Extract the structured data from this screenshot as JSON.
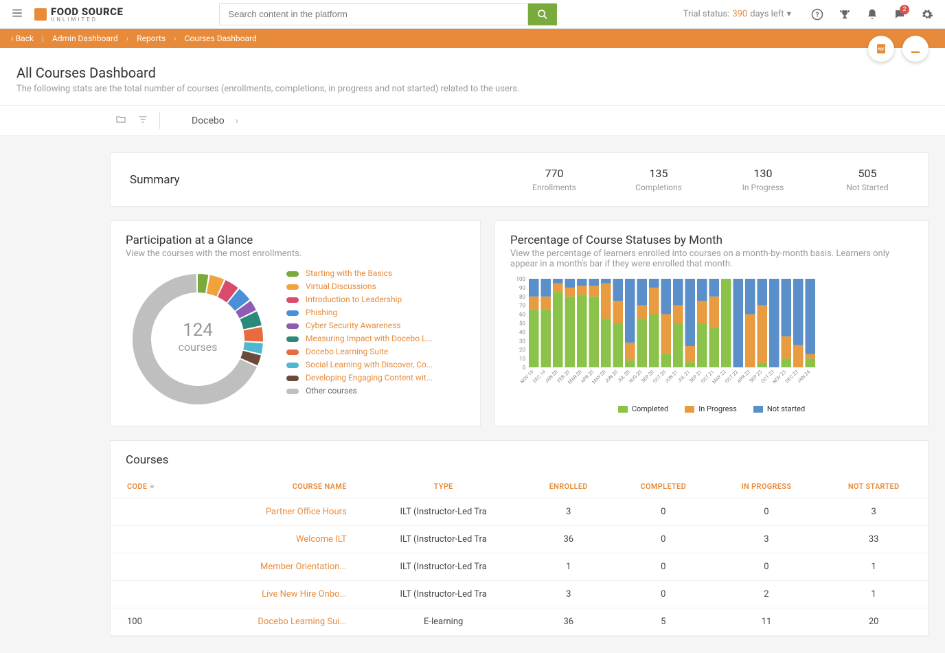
{
  "topbar": {
    "logo_main": "FOOD SOURCE",
    "logo_sub": "UNLIMITED",
    "search_placeholder": "Search content in the platform",
    "trial_prefix": "Trial status:",
    "trial_days": "390",
    "trial_suffix": "days left",
    "notif_badge": "2"
  },
  "breadcrumb": {
    "back": "Back",
    "items": [
      "Admin Dashboard",
      "Reports",
      "Courses Dashboard"
    ]
  },
  "page": {
    "title": "All Courses Dashboard",
    "desc": "The following stats are the total number of courses (enrollments, completions, in progress and not started) related to the users."
  },
  "filter": {
    "root": "Docebo"
  },
  "summary": {
    "title": "Summary",
    "stats": [
      {
        "num": "770",
        "lbl": "Enrollments"
      },
      {
        "num": "135",
        "lbl": "Completions"
      },
      {
        "num": "130",
        "lbl": "In Progress"
      },
      {
        "num": "505",
        "lbl": "Not Started"
      }
    ]
  },
  "donut": {
    "title": "Participation at a Glance",
    "desc": "View the courses with the most enrollments.",
    "center_num": "124",
    "center_lbl": "courses",
    "segments": [
      {
        "label": "Starting with the Basics",
        "color": "#7aaa3c",
        "pct": 3
      },
      {
        "label": "Virtual Discussions",
        "color": "#f0a23e",
        "pct": 4
      },
      {
        "label": "Introduction to Leadership",
        "color": "#d94b6a",
        "pct": 4
      },
      {
        "label": "Phishing",
        "color": "#4a90d9",
        "pct": 4
      },
      {
        "label": "Cyber Security Awareness",
        "color": "#8e5bb5",
        "pct": 3
      },
      {
        "label": "Measuring Impact with Docebo L...",
        "color": "#2b8a7a",
        "pct": 4
      },
      {
        "label": "Docebo Learning Suite",
        "color": "#e86a3f",
        "pct": 4
      },
      {
        "label": "Social Learning with Discover, Co...",
        "color": "#4fb8d1",
        "pct": 3
      },
      {
        "label": "Developing Engaging Content wit...",
        "color": "#6b4a3a",
        "pct": 3
      },
      {
        "label": "Other courses",
        "color": "#bfbfbf",
        "pct": 68,
        "gray": true
      }
    ]
  },
  "barchart": {
    "title": "Percentage of Course Statuses by Month",
    "desc": "View the percentage of learners enrolled into courses on a month-by-month basis. Learners only appear in a month's bar if they were enrolled that month.",
    "y_ticks": [
      0,
      10,
      20,
      30,
      40,
      50,
      60,
      70,
      80,
      90,
      100
    ],
    "colors": {
      "completed": "#8bc34a",
      "in_progress": "#e89b3f",
      "not_started": "#5a8fca"
    },
    "legend": [
      {
        "key": "completed",
        "label": "Completed"
      },
      {
        "key": "in_progress",
        "label": "In Progress"
      },
      {
        "key": "not_started",
        "label": "Not started"
      }
    ],
    "months": [
      {
        "l": "NOV 19",
        "c": 65,
        "p": 15,
        "n": 20
      },
      {
        "l": "DEC 19",
        "c": 65,
        "p": 15,
        "n": 20
      },
      {
        "l": "JAN 20",
        "c": 85,
        "p": 10,
        "n": 5
      },
      {
        "l": "FEB 20",
        "c": 80,
        "p": 10,
        "n": 10
      },
      {
        "l": "MAR 20",
        "c": 82,
        "p": 10,
        "n": 8
      },
      {
        "l": "APR 20",
        "c": 80,
        "p": 12,
        "n": 8
      },
      {
        "l": "MAY 20",
        "c": 55,
        "p": 40,
        "n": 5
      },
      {
        "l": "JUN 20",
        "c": 50,
        "p": 25,
        "n": 25
      },
      {
        "l": "JUL 20",
        "c": 8,
        "p": 20,
        "n": 72
      },
      {
        "l": "AUG 20",
        "c": 55,
        "p": 15,
        "n": 30
      },
      {
        "l": "SEP 20",
        "c": 60,
        "p": 30,
        "n": 10
      },
      {
        "l": "OCT 20",
        "c": 15,
        "p": 45,
        "n": 40
      },
      {
        "l": "JUN 21",
        "c": 50,
        "p": 20,
        "n": 30
      },
      {
        "l": "JUL 21",
        "c": 6,
        "p": 18,
        "n": 76
      },
      {
        "l": "SEP 21",
        "c": 50,
        "p": 25,
        "n": 25
      },
      {
        "l": "OCT 21",
        "c": 45,
        "p": 35,
        "n": 20
      },
      {
        "l": "MAY 22",
        "c": 100,
        "p": 0,
        "n": 0
      },
      {
        "l": "OCT 22",
        "c": 0,
        "p": 0,
        "n": 100
      },
      {
        "l": "APR 23",
        "c": 0,
        "p": 60,
        "n": 40
      },
      {
        "l": "SEP 23",
        "c": 5,
        "p": 65,
        "n": 30
      },
      {
        "l": "OCT 23",
        "c": 0,
        "p": 0,
        "n": 100
      },
      {
        "l": "NOV 23",
        "c": 10,
        "p": 25,
        "n": 65
      },
      {
        "l": "DEC 23",
        "c": 0,
        "p": 25,
        "n": 75
      },
      {
        "l": "JAN 24",
        "c": 10,
        "p": 5,
        "n": 85
      }
    ]
  },
  "table": {
    "title": "Courses",
    "columns": [
      "CODE",
      "COURSE NAME",
      "TYPE",
      "ENROLLED",
      "COMPLETED",
      "IN PROGRESS",
      "NOT STARTED"
    ],
    "rows": [
      {
        "code": "",
        "name": "Partner Office Hours",
        "type": "ILT (Instructor-Led Tra",
        "enrolled": "3",
        "completed": "0",
        "in_progress": "0",
        "not_started": "3"
      },
      {
        "code": "",
        "name": "Welcome ILT",
        "type": "ILT (Instructor-Led Tra",
        "enrolled": "36",
        "completed": "0",
        "in_progress": "3",
        "not_started": "33"
      },
      {
        "code": "",
        "name": "Member Orientation...",
        "type": "ILT (Instructor-Led Tra",
        "enrolled": "1",
        "completed": "0",
        "in_progress": "0",
        "not_started": "1"
      },
      {
        "code": "",
        "name": "Live New Hire Onbo...",
        "type": "ILT (Instructor-Led Tra",
        "enrolled": "3",
        "completed": "0",
        "in_progress": "2",
        "not_started": "1"
      },
      {
        "code": "100",
        "name": "Docebo Learning Sui...",
        "type": "E-learning",
        "enrolled": "36",
        "completed": "5",
        "in_progress": "11",
        "not_started": "20"
      }
    ]
  }
}
